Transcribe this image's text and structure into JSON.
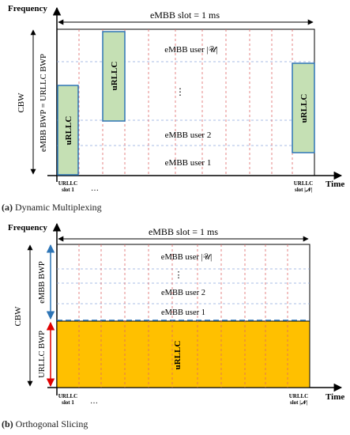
{
  "panel_a": {
    "y_axis_label": "Frequency",
    "x_axis_label": "Time",
    "slot_label": "eMBB slot = 1 ms",
    "cbw_label": "CBW",
    "bwp_label": "eMBB BWP = URLLC BWP",
    "users": [
      "eMBB user |𝒰|",
      "⋮",
      "eMBB user 2",
      "eMBB user 1"
    ],
    "urllc_block_label": "uRLLC",
    "slot_first": [
      "URLLC",
      "slot 1"
    ],
    "slot_last": [
      "URLLC",
      "slot |𝒩|"
    ],
    "slot_dots": "…",
    "caption_letter": "(a)",
    "caption_text": " Dynamic Multiplexing",
    "colors": {
      "urllc_fill": "#c5e0b4",
      "urllc_border": "#2e75b6",
      "grid": "#8ea9db",
      "slot_divider": "#e06666"
    }
  },
  "panel_b": {
    "y_axis_label": "Frequency",
    "x_axis_label": "Time",
    "slot_label": "eMBB slot = 1 ms",
    "cbw_label": "CBW",
    "embb_bwp_label": "eMBB BWP",
    "urllc_bwp_label": "URLLC BWP",
    "users": [
      "eMBB user |𝒰|",
      "⋮",
      "eMBB user 2",
      "eMBB user 1"
    ],
    "urllc_block_label": "uRLLC",
    "slot_first": [
      "URLLC",
      "slot 1"
    ],
    "slot_last": [
      "URLLC",
      "slot |𝒩|"
    ],
    "slot_dots": "…",
    "caption_letter": "(b)",
    "caption_text": " Orthogonal Slicing",
    "colors": {
      "urllc_fill": "#ffc000",
      "embb_arrow": "#2e75b6",
      "urllc_arrow": "#e00000",
      "boundary": "#2e75b6",
      "grid": "#8ea9db",
      "slot_divider": "#e06666"
    }
  }
}
